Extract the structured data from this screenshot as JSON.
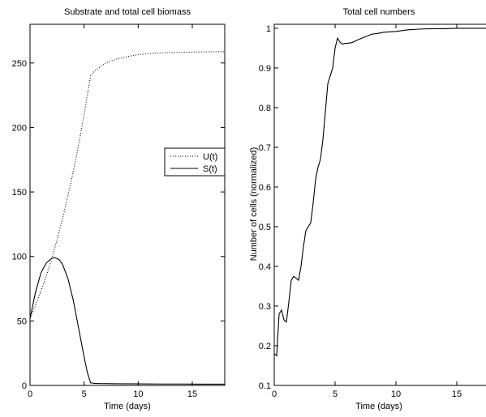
{
  "chart_data": [
    {
      "type": "line",
      "title": "Substrate and total cell biomass",
      "xlabel": "Time (days)",
      "ylabel": "",
      "xlim": [
        0,
        18
      ],
      "ylim": [
        0,
        280
      ],
      "xticks": [
        0,
        5,
        10,
        15
      ],
      "yticks": [
        0,
        50,
        100,
        150,
        200,
        250
      ],
      "grid": false,
      "legend_position": "right-middle",
      "series": [
        {
          "name": "U(t)",
          "style": "dotted",
          "color": "#000000",
          "x": [
            0,
            0.5,
            1,
            1.5,
            2,
            2.5,
            3,
            3.5,
            4,
            4.5,
            5,
            5.6,
            6,
            7,
            8,
            9,
            10,
            11,
            12,
            13,
            14,
            15,
            16,
            17,
            18
          ],
          "y": [
            52,
            62,
            73,
            85,
            98,
            113,
            129,
            147,
            166,
            187,
            210,
            240,
            244,
            250,
            253,
            255,
            256.5,
            257.3,
            257.8,
            258.1,
            258.3,
            258.5,
            258.6,
            258.7,
            258.8
          ]
        },
        {
          "name": "S(t)",
          "style": "solid",
          "color": "#000000",
          "x": [
            0,
            0.5,
            1,
            1.5,
            2,
            2.3,
            2.7,
            3,
            3.5,
            4,
            4.5,
            5,
            5.3,
            5.6,
            6,
            8,
            10,
            12,
            14,
            16,
            18
          ],
          "y": [
            52,
            72,
            87,
            95,
            98.5,
            99,
            97.5,
            94,
            83,
            66,
            44,
            22,
            10,
            2,
            1.5,
            1.3,
            1.2,
            1.1,
            1.1,
            1.0,
            1.0
          ]
        }
      ]
    },
    {
      "type": "line",
      "title": "Total cell numbers",
      "xlabel": "Time (days)",
      "ylabel": "Number of cells (normalized)",
      "xlim": [
        0,
        18
      ],
      "ylim": [
        0.1,
        1.01
      ],
      "xticks": [
        0,
        5,
        10,
        15
      ],
      "yticks": [
        0.1,
        0.2,
        0.3,
        0.4,
        0.5,
        0.6,
        0.7,
        0.8,
        0.9,
        1
      ],
      "grid": false,
      "series": [
        {
          "name": "",
          "style": "solid",
          "color": "#000000",
          "x": [
            0,
            0.2,
            0.4,
            0.6,
            0.8,
            1.0,
            1.2,
            1.4,
            1.6,
            1.8,
            2.0,
            2.2,
            2.4,
            2.6,
            2.8,
            3.0,
            3.2,
            3.4,
            3.6,
            3.8,
            4.0,
            4.2,
            4.4,
            4.6,
            4.8,
            5.0,
            5.2,
            5.4,
            5.6,
            5.8,
            6.0,
            6.4,
            6.8,
            7.2,
            7.6,
            8.0,
            8.5,
            9.0,
            10,
            11,
            12,
            13,
            14,
            15,
            16,
            17,
            18
          ],
          "y": [
            0.18,
            0.175,
            0.28,
            0.29,
            0.265,
            0.26,
            0.31,
            0.365,
            0.375,
            0.37,
            0.365,
            0.4,
            0.45,
            0.49,
            0.5,
            0.51,
            0.56,
            0.62,
            0.65,
            0.67,
            0.72,
            0.79,
            0.86,
            0.88,
            0.9,
            0.95,
            0.975,
            0.965,
            0.96,
            0.962,
            0.962,
            0.964,
            0.97,
            0.975,
            0.98,
            0.985,
            0.987,
            0.99,
            0.992,
            0.996,
            0.998,
            0.999,
            0.999,
            1.0,
            1.0,
            1.0,
            1.0
          ]
        }
      ]
    }
  ]
}
